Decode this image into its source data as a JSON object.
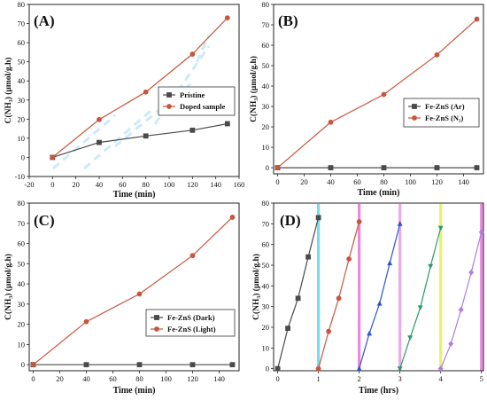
{
  "colors": {
    "gray": "#4a4a4a",
    "red": "#c8553d",
    "blue": "#2f55c8",
    "green": "#2e9a6a",
    "violet": "#b27de0",
    "cyan": "#5fd6ea",
    "magenta": "#e873dc",
    "yellow": "#e8ee4a",
    "pink": "#e89ae0",
    "watermark": "#8fd2f5"
  },
  "chart_data": [
    {
      "id": "A",
      "panel_label": "(A)",
      "type": "line",
      "xlabel": "Time (min)",
      "ylabel": "C(NH₃) (µmol/g.h)",
      "xlim": [
        -20,
        160
      ],
      "ylim": [
        -10,
        80
      ],
      "xticks": [
        -20,
        0,
        20,
        40,
        60,
        80,
        100,
        120,
        140,
        160
      ],
      "yticks": [
        -10,
        0,
        10,
        20,
        30,
        40,
        50,
        60,
        70,
        80
      ],
      "legend_position": "center-right",
      "series": [
        {
          "name": "Pristine",
          "marker": "square",
          "color_key": "gray",
          "x": [
            0,
            40,
            80,
            120,
            150
          ],
          "y": [
            0,
            7.8,
            11.2,
            14.2,
            17.6
          ]
        },
        {
          "name": "Doped sample",
          "marker": "circle",
          "color_key": "red",
          "x": [
            0,
            40,
            80,
            120,
            150
          ],
          "y": [
            0,
            19.8,
            34.2,
            54,
            73
          ]
        }
      ]
    },
    {
      "id": "B",
      "panel_label": "(B)",
      "type": "line",
      "xlabel": "Time (min)",
      "ylabel": "C(NH₃) (µmol/g.h)",
      "xlim": [
        -3,
        155
      ],
      "ylim": [
        -3,
        80
      ],
      "xticks": [
        0,
        20,
        40,
        60,
        80,
        100,
        120,
        140
      ],
      "yticks": [
        0,
        10,
        20,
        30,
        40,
        50,
        60,
        70,
        80
      ],
      "legend_position": "center-right",
      "series": [
        {
          "name": "Fe-ZnS (Ar)",
          "marker": "square",
          "color_key": "gray",
          "x": [
            0,
            40,
            80,
            120,
            150
          ],
          "y": [
            0,
            0,
            0,
            0,
            0
          ]
        },
        {
          "name": "Fe-ZnS (N₂)",
          "marker": "circle",
          "color_key": "red",
          "x": [
            0,
            40,
            80,
            120,
            150
          ],
          "y": [
            0,
            22.3,
            35.9,
            55.3,
            72.8
          ]
        }
      ]
    },
    {
      "id": "C",
      "panel_label": "(C)",
      "type": "line",
      "xlabel": "Time (min)",
      "ylabel": "C(NH₃) (µmol/g.h)",
      "xlim": [
        -3,
        155
      ],
      "ylim": [
        -3,
        80
      ],
      "xticks": [
        0,
        20,
        40,
        60,
        80,
        100,
        120,
        140
      ],
      "yticks": [
        0,
        10,
        20,
        30,
        40,
        50,
        60,
        70,
        80
      ],
      "legend_position": "center-right",
      "series": [
        {
          "name": "Fe-ZnS (Dark)",
          "marker": "square",
          "color_key": "gray",
          "x": [
            0,
            40,
            80,
            120,
            150
          ],
          "y": [
            0,
            0,
            0,
            0,
            0
          ]
        },
        {
          "name": "Fe-ZnS (Light)",
          "marker": "circle",
          "color_key": "red",
          "x": [
            0,
            40,
            80,
            120,
            150
          ],
          "y": [
            0,
            21.3,
            35,
            54,
            73
          ]
        }
      ]
    },
    {
      "id": "D",
      "panel_label": "(D)",
      "type": "line",
      "xlabel": "Time (hrs)",
      "ylabel": "C(NH₃) (µmol/g.h)",
      "xlim": [
        -0.1,
        5.05
      ],
      "ylim": [
        -1,
        80
      ],
      "xticks": [
        0,
        1,
        2,
        3,
        4,
        5
      ],
      "yticks": [
        0,
        10,
        20,
        30,
        40,
        50,
        60,
        70,
        80
      ],
      "bands": [
        {
          "x": 1,
          "color_key": "cyan"
        },
        {
          "x": 2,
          "color_key": "magenta"
        },
        {
          "x": 3,
          "color_key": "pink"
        },
        {
          "x": 4,
          "color_key": "yellow"
        },
        {
          "x": 5,
          "color_key": "magenta"
        }
      ],
      "series": [
        {
          "marker": "square",
          "color_key": "gray",
          "x": [
            0,
            0.25,
            0.5,
            0.75,
            1.0
          ],
          "y": [
            0,
            19.5,
            34,
            54,
            73
          ]
        },
        {
          "marker": "circle",
          "color_key": "red",
          "x": [
            1.0,
            1.25,
            1.5,
            1.75,
            2.0
          ],
          "y": [
            0,
            18,
            34,
            53,
            71
          ]
        },
        {
          "marker": "triangle-up",
          "color_key": "blue",
          "x": [
            2.0,
            2.25,
            2.5,
            2.75,
            3.0
          ],
          "y": [
            0,
            17,
            31.5,
            51,
            70
          ]
        },
        {
          "marker": "triangle-down",
          "color_key": "green",
          "x": [
            3.0,
            3.25,
            3.5,
            3.75,
            4.0
          ],
          "y": [
            0,
            15,
            29.5,
            49.5,
            68
          ]
        },
        {
          "marker": "diamond",
          "color_key": "violet",
          "x": [
            4.0,
            4.25,
            4.5,
            4.75,
            5.0
          ],
          "y": [
            0,
            12,
            28.5,
            46.5,
            66
          ]
        }
      ]
    }
  ]
}
